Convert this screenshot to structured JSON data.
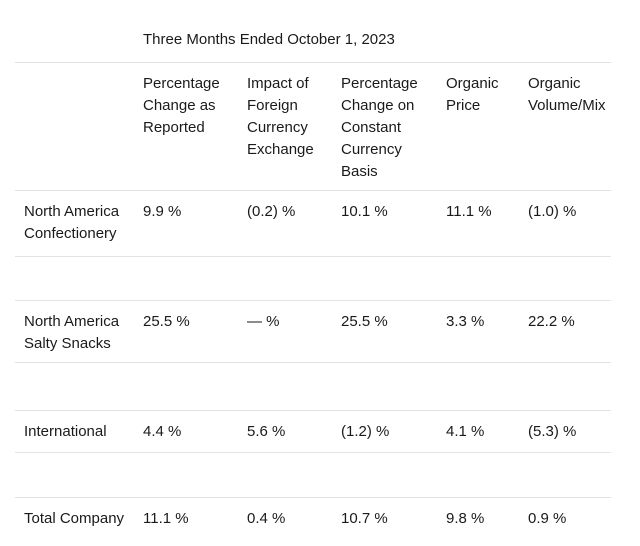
{
  "title": "Three Months Ended October 1, 2023",
  "table": {
    "columns": [
      "",
      "Percentage Change as Reported",
      "Impact of Foreign Currency Exchange",
      "Percentage Change on Constant Currency Basis",
      "Organic Price",
      "Organic Volume/Mix"
    ],
    "rows": [
      {
        "label": "North America Confectionery",
        "values": [
          "9.9 %",
          "(0.2) %",
          "10.1 %",
          "11.1 %",
          "(1.0) %"
        ]
      },
      {
        "label": "North America Salty Snacks",
        "values": [
          "25.5 %",
          "— %",
          "25.5 %",
          "3.3 %",
          "22.2 %"
        ]
      },
      {
        "label": "International",
        "values": [
          "4.4 %",
          "5.6 %",
          "(1.2) %",
          "4.1 %",
          "(5.3) %"
        ]
      },
      {
        "label": "Total Company",
        "values": [
          "11.1 %",
          "0.4 %",
          "10.7 %",
          "9.8 %",
          "0.9 %"
        ]
      }
    ]
  },
  "colors": {
    "background": "#ffffff",
    "text": "#1a1a1a",
    "rule": "#e2e2e2"
  }
}
